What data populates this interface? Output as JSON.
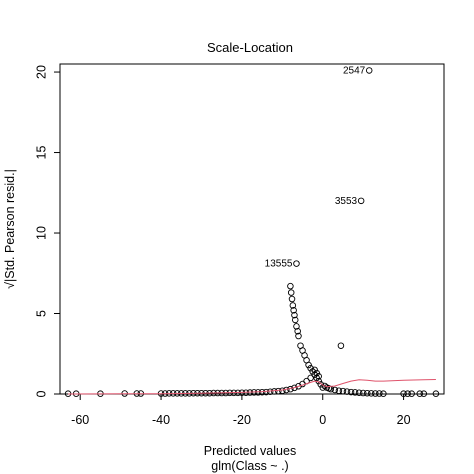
{
  "chart_data": {
    "type": "scatter",
    "title": "Scale-Location",
    "xlabel": "Predicted values",
    "subtitle": "glm(Class ~ .)",
    "ylabel": "√|Std. Pearson resid.|",
    "xlim": [
      -65,
      30
    ],
    "ylim": [
      0,
      20.5
    ],
    "xticks": [
      -60,
      -40,
      -20,
      0,
      20
    ],
    "yticks": [
      0,
      5,
      10,
      15,
      20
    ],
    "grid": false,
    "colors": {
      "points": "#000000",
      "smooth": "#df536b"
    },
    "annotations": [
      {
        "label": "2547",
        "x": 11.5,
        "y": 20.1
      },
      {
        "label": "3553",
        "x": 9.5,
        "y": 12.0
      },
      {
        "label": "13555",
        "x": -6.5,
        "y": 8.1
      }
    ],
    "points": [
      [
        -63,
        0.02
      ],
      [
        -61,
        0.02
      ],
      [
        -55,
        0.02
      ],
      [
        -49,
        0.03
      ],
      [
        -46,
        0.03
      ],
      [
        -45,
        0.03
      ],
      [
        -40,
        0.03
      ],
      [
        -39,
        0.03
      ],
      [
        -38,
        0.04
      ],
      [
        -37,
        0.04
      ],
      [
        -36,
        0.04
      ],
      [
        -35,
        0.04
      ],
      [
        -34,
        0.04
      ],
      [
        -33,
        0.04
      ],
      [
        -32,
        0.05
      ],
      [
        -31,
        0.05
      ],
      [
        -30,
        0.05
      ],
      [
        -29,
        0.05
      ],
      [
        -28,
        0.05
      ],
      [
        -27,
        0.06
      ],
      [
        -26,
        0.06
      ],
      [
        -25,
        0.06
      ],
      [
        -24,
        0.06
      ],
      [
        -23,
        0.07
      ],
      [
        -22,
        0.07
      ],
      [
        -21,
        0.07
      ],
      [
        -20,
        0.08
      ],
      [
        -19,
        0.08
      ],
      [
        -18,
        0.09
      ],
      [
        -17,
        0.1
      ],
      [
        -16,
        0.1
      ],
      [
        -15,
        0.11
      ],
      [
        -14,
        0.12
      ],
      [
        -13,
        0.14
      ],
      [
        -12,
        0.16
      ],
      [
        -11,
        0.18
      ],
      [
        -10,
        0.2
      ],
      [
        -9,
        0.25
      ],
      [
        -8,
        0.3
      ],
      [
        -7,
        0.38
      ],
      [
        -6,
        0.48
      ],
      [
        -5,
        0.62
      ],
      [
        -4,
        0.8
      ],
      [
        -3,
        1.0
      ],
      [
        -2,
        1.2
      ],
      [
        -1.5,
        1.0
      ],
      [
        -1,
        0.8
      ],
      [
        -0.5,
        0.6
      ],
      [
        0,
        0.4
      ],
      [
        -8,
        6.7
      ],
      [
        -7.8,
        6.3
      ],
      [
        -7.6,
        5.9
      ],
      [
        -7.4,
        5.5
      ],
      [
        -7.2,
        5.2
      ],
      [
        -7,
        4.9
      ],
      [
        -6.8,
        4.6
      ],
      [
        -6.5,
        4.2
      ],
      [
        -6.2,
        3.9
      ],
      [
        -6,
        3.6
      ],
      [
        -5.5,
        3.0
      ],
      [
        -5,
        2.7
      ],
      [
        -4.5,
        2.4
      ],
      [
        -4,
        2.1
      ],
      [
        -3.5,
        1.8
      ],
      [
        -3,
        1.6
      ],
      [
        -2.5,
        1.4
      ],
      [
        -2,
        1.5
      ],
      [
        -1.5,
        1.3
      ],
      [
        -1,
        1.1
      ],
      [
        0.5,
        0.5
      ],
      [
        1,
        0.4
      ],
      [
        1.5,
        0.35
      ],
      [
        2,
        0.3
      ],
      [
        3,
        0.25
      ],
      [
        4,
        0.2
      ],
      [
        5,
        0.18
      ],
      [
        6,
        0.15
      ],
      [
        7,
        0.12
      ],
      [
        8,
        0.1
      ],
      [
        9,
        0.08
      ],
      [
        10,
        0.06
      ],
      [
        11,
        0.05
      ],
      [
        12,
        0.04
      ],
      [
        13,
        0.03
      ],
      [
        14,
        0.03
      ],
      [
        15,
        0.02
      ],
      [
        20,
        0.02
      ],
      [
        21,
        0.02
      ],
      [
        22,
        0.02
      ],
      [
        24,
        0.02
      ],
      [
        25,
        0.02
      ],
      [
        28,
        0.02
      ],
      [
        4.5,
        3.0
      ],
      [
        9.5,
        12.0
      ],
      [
        11.5,
        20.1
      ],
      [
        -6.5,
        8.1
      ]
    ],
    "smooth": [
      [
        -63,
        0.0
      ],
      [
        -40,
        0.02
      ],
      [
        -30,
        0.05
      ],
      [
        -20,
        0.1
      ],
      [
        -15,
        0.15
      ],
      [
        -10,
        0.25
      ],
      [
        -7,
        0.4
      ],
      [
        -5,
        0.55
      ],
      [
        -3,
        0.72
      ],
      [
        -2,
        0.8
      ],
      [
        -1,
        0.75
      ],
      [
        0,
        0.55
      ],
      [
        1,
        0.45
      ],
      [
        3,
        0.5
      ],
      [
        5,
        0.65
      ],
      [
        7,
        0.8
      ],
      [
        9,
        0.88
      ],
      [
        11,
        0.85
      ],
      [
        13,
        0.8
      ],
      [
        15,
        0.8
      ],
      [
        20,
        0.85
      ],
      [
        25,
        0.88
      ],
      [
        28,
        0.9
      ]
    ]
  }
}
